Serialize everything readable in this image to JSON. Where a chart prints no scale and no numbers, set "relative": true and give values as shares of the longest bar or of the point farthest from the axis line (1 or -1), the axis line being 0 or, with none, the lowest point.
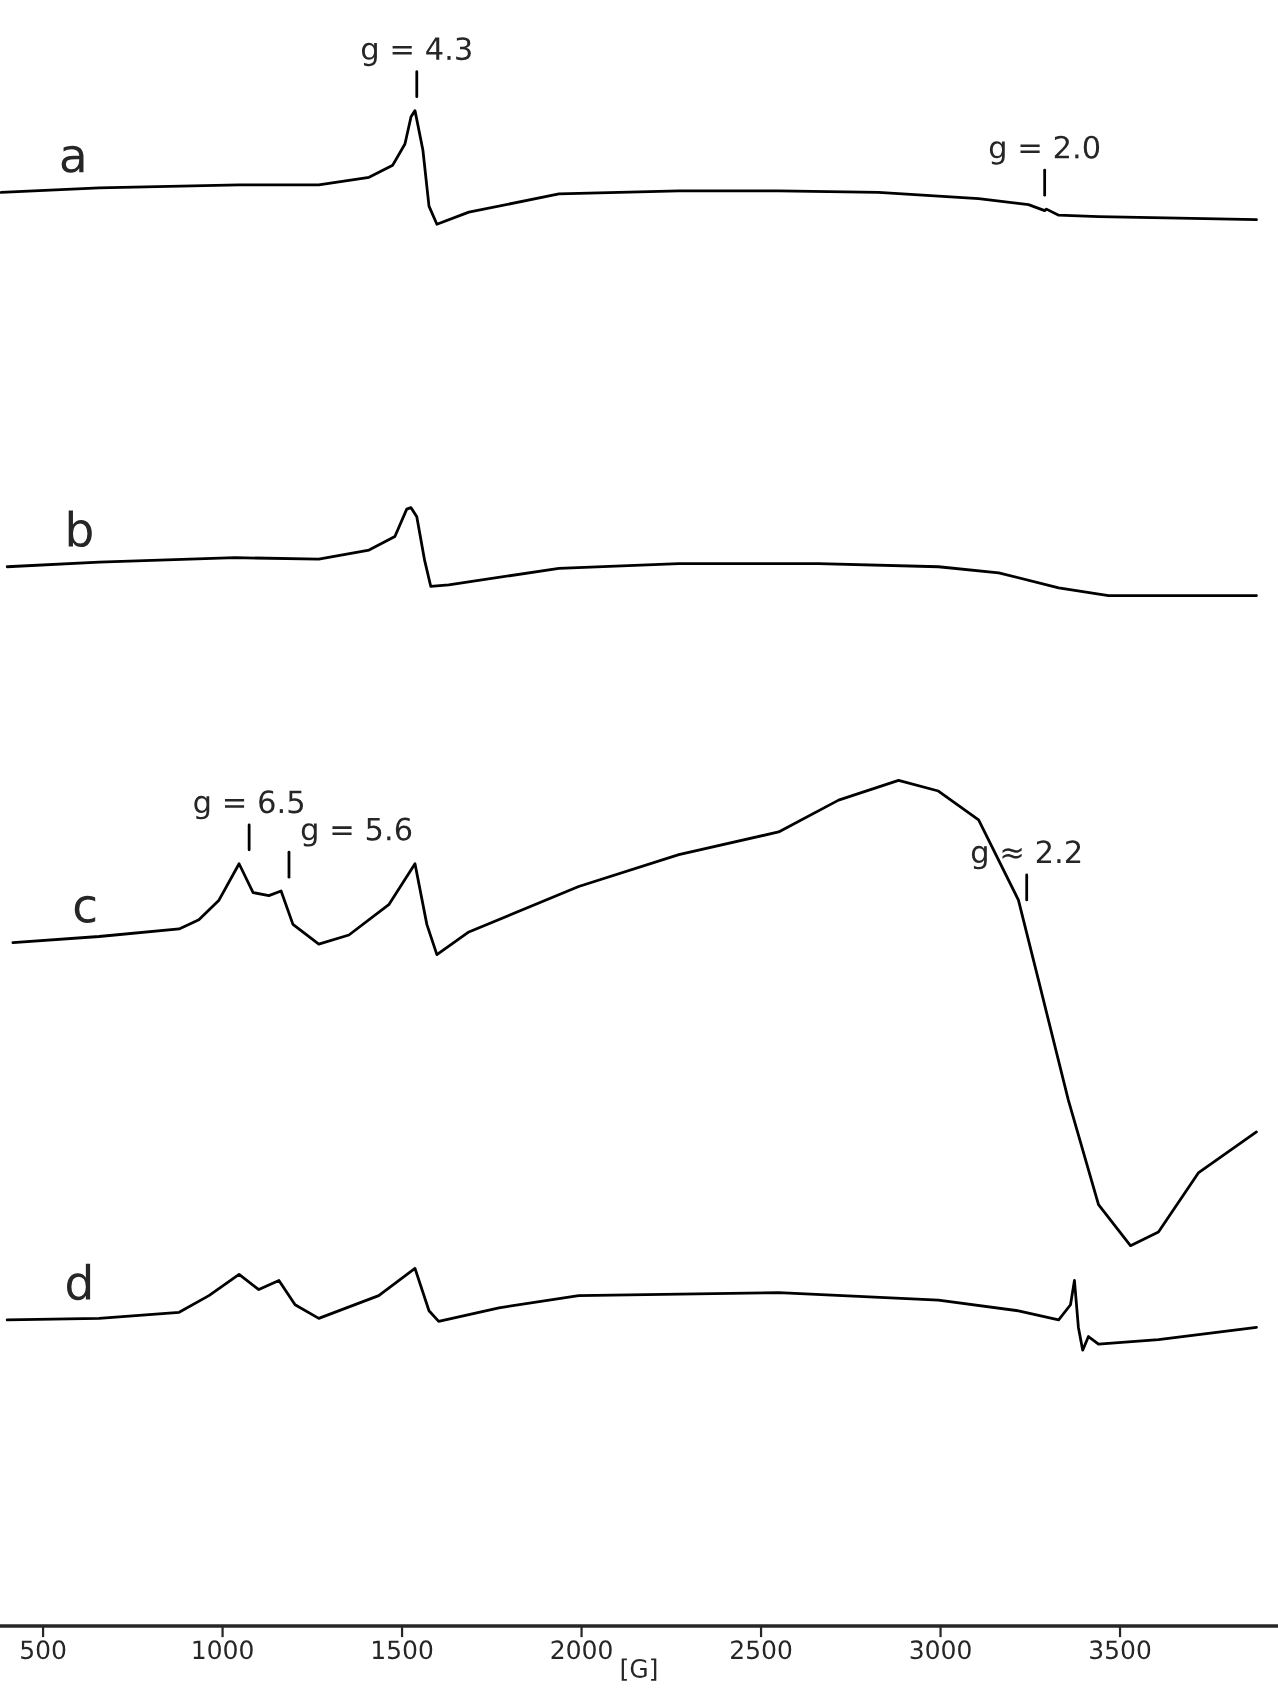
{
  "chart_data": {
    "type": "line",
    "relative": true,
    "xlabel": "[G]",
    "xlim": [
      380,
      3940
    ],
    "xticks": [
      500,
      1000,
      1500,
      2000,
      2500,
      3000,
      3500
    ],
    "legend": false,
    "grid": false,
    "series": [
      {
        "name": "a",
        "color": "#000000",
        "x": [
          383,
          656,
          1046,
          1268,
          1408,
          1474,
          1508,
          1525,
          1536,
          1558,
          1575,
          1597,
          1686,
          1937,
          2271,
          2549,
          2827,
          3106,
          3245,
          3290,
          3295,
          3329,
          3440,
          3663,
          3880
        ],
        "values": [
          0.946,
          0.949,
          0.951,
          0.951,
          0.956,
          0.964,
          0.978,
          0.996,
          1.0,
          0.974,
          0.937,
          0.925,
          0.933,
          0.945,
          0.947,
          0.947,
          0.946,
          0.942,
          0.938,
          0.934,
          0.935,
          0.931,
          0.93,
          0.929,
          0.928
        ]
      },
      {
        "name": "b",
        "color": "#000000",
        "x": [
          400,
          656,
          1035,
          1268,
          1408,
          1480,
          1513,
          1525,
          1541,
          1563,
          1580,
          1630,
          1937,
          2271,
          2660,
          2994,
          3162,
          3329,
          3468,
          3663,
          3880
        ],
        "values": [
          0.699,
          0.702,
          0.705,
          0.704,
          0.71,
          0.719,
          0.737,
          0.738,
          0.732,
          0.703,
          0.686,
          0.687,
          0.698,
          0.701,
          0.701,
          0.699,
          0.695,
          0.685,
          0.68,
          0.68,
          0.68
        ]
      },
      {
        "name": "c",
        "color": "#000000",
        "x": [
          416,
          656,
          879,
          934,
          990,
          1046,
          1085,
          1129,
          1163,
          1196,
          1268,
          1352,
          1463,
          1536,
          1569,
          1597,
          1686,
          1992,
          2271,
          2549,
          2716,
          2883,
          2994,
          3106,
          3217,
          3273,
          3356,
          3440,
          3529,
          3607,
          3718,
          3880
        ],
        "values": [
          0.451,
          0.455,
          0.46,
          0.466,
          0.479,
          0.503,
          0.484,
          0.482,
          0.485,
          0.463,
          0.45,
          0.456,
          0.476,
          0.503,
          0.463,
          0.443,
          0.458,
          0.488,
          0.509,
          0.524,
          0.545,
          0.558,
          0.551,
          0.532,
          0.479,
          0.426,
          0.347,
          0.278,
          0.251,
          0.26,
          0.299,
          0.326
        ]
      },
      {
        "name": "d",
        "color": "#000000",
        "x": [
          400,
          656,
          879,
          962,
          1046,
          1101,
          1157,
          1202,
          1268,
          1435,
          1536,
          1575,
          1602,
          1770,
          1992,
          2549,
          2994,
          3217,
          3329,
          3362,
          3373,
          3384,
          3396,
          3412,
          3440,
          3607,
          3880
        ],
        "values": [
          0.202,
          0.203,
          0.207,
          0.218,
          0.232,
          0.222,
          0.228,
          0.212,
          0.203,
          0.218,
          0.236,
          0.208,
          0.201,
          0.21,
          0.218,
          0.22,
          0.215,
          0.208,
          0.202,
          0.212,
          0.228,
          0.197,
          0.182,
          0.191,
          0.186,
          0.189,
          0.197
        ]
      }
    ],
    "annotations": [
      {
        "text": "g = 4.3",
        "x": 1541,
        "y": 1.0
      },
      {
        "text": "g = 2.0",
        "x": 3290,
        "y": 0.935
      },
      {
        "text": "g = 6.5",
        "x": 1074,
        "y": 0.503
      },
      {
        "text": "g = 5.6",
        "x": 1185,
        "y": 0.485
      },
      {
        "text": "g ≈ 2.2",
        "x": 3240,
        "y": 0.47
      }
    ]
  }
}
